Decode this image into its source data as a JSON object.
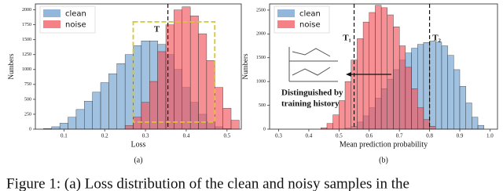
{
  "chart_data": [
    {
      "type": "histogram",
      "xlabel": "Loss",
      "ylabel": "Numbers",
      "panel_label": "(a)",
      "bins": [
        0.05,
        0.07,
        0.09,
        0.11,
        0.13,
        0.15,
        0.17,
        0.19,
        0.21,
        0.23,
        0.25,
        0.27,
        0.29,
        0.31,
        0.33,
        0.35,
        0.37,
        0.39,
        0.41,
        0.43,
        0.45,
        0.47,
        0.49,
        0.51,
        0.53
      ],
      "series": [
        {
          "name": "clean",
          "color": "#6f9fcf",
          "values": [
            10,
            40,
            100,
            200,
            330,
            470,
            620,
            780,
            930,
            1100,
            1250,
            1400,
            1480,
            1480,
            1420,
            1250,
            1000,
            700,
            450,
            250,
            120,
            40,
            10,
            0
          ]
        },
        {
          "name": "noise",
          "color": "#f2555c",
          "values": [
            0,
            0,
            0,
            0,
            0,
            0,
            0,
            0,
            0,
            0,
            60,
            200,
            450,
            800,
            1300,
            1750,
            2000,
            2050,
            1900,
            1600,
            1150,
            700,
            350,
            150
          ]
        }
      ],
      "xlim": [
        0.03,
        0.535
      ],
      "ylim": [
        0,
        2100
      ],
      "xticks": [
        0.1,
        0.2,
        0.3,
        0.4,
        0.5
      ],
      "yticks": [
        0,
        250,
        500,
        750,
        1000,
        1250,
        1500,
        1750,
        2000
      ],
      "legend": "upper left",
      "thresholds": [
        {
          "value": 0.355
        }
      ],
      "box": {
        "x": [
          0.27,
          0.47
        ],
        "y": [
          120,
          1800
        ]
      },
      "box_label": "T"
    },
    {
      "type": "histogram",
      "xlabel": "Mean prediction probability",
      "ylabel": "Numbers",
      "panel_label": "(b)",
      "bins": [
        0.44,
        0.46,
        0.48,
        0.5,
        0.52,
        0.54,
        0.56,
        0.58,
        0.6,
        0.62,
        0.64,
        0.66,
        0.68,
        0.7,
        0.72,
        0.74,
        0.76,
        0.78,
        0.8,
        0.82,
        0.84,
        0.86,
        0.88,
        0.9,
        0.92,
        0.94,
        0.96,
        0.98
      ],
      "series": [
        {
          "name": "clean",
          "color": "#6f9fcf",
          "values": [
            0,
            0,
            0,
            0,
            20,
            60,
            150,
            280,
            450,
            650,
            850,
            1050,
            1250,
            1450,
            1600,
            1700,
            1780,
            1820,
            1850,
            1830,
            1750,
            1550,
            1250,
            900,
            550,
            250,
            80
          ]
        },
        {
          "name": "noise",
          "color": "#f2555c",
          "values": [
            30,
            120,
            300,
            600,
            1000,
            1450,
            1900,
            2250,
            2450,
            2600,
            2550,
            2400,
            2150,
            1750,
            1300,
            850,
            450,
            200,
            60,
            0,
            0,
            0,
            0,
            0,
            0,
            0,
            0
          ]
        }
      ],
      "xlim": [
        0.27,
        1.025
      ],
      "ylim": [
        0,
        2630
      ],
      "xticks": [
        0.3,
        0.4,
        0.5,
        0.6,
        0.7,
        0.8,
        0.9,
        {
          "value": 1,
          "label": "1.0"
        }
      ],
      "yticks": [
        0,
        500,
        1000,
        1500,
        2000,
        2500
      ],
      "legend": "upper left",
      "thresholds": [
        {
          "value": 0.55,
          "label": "T₁"
        },
        {
          "value": 0.8,
          "label": "T₂"
        }
      ],
      "annotation": [
        "Distinguished by",
        "training history"
      ]
    }
  ],
  "caption": "Figure 1: (a) Loss distribution of the clean and noisy samples in the"
}
